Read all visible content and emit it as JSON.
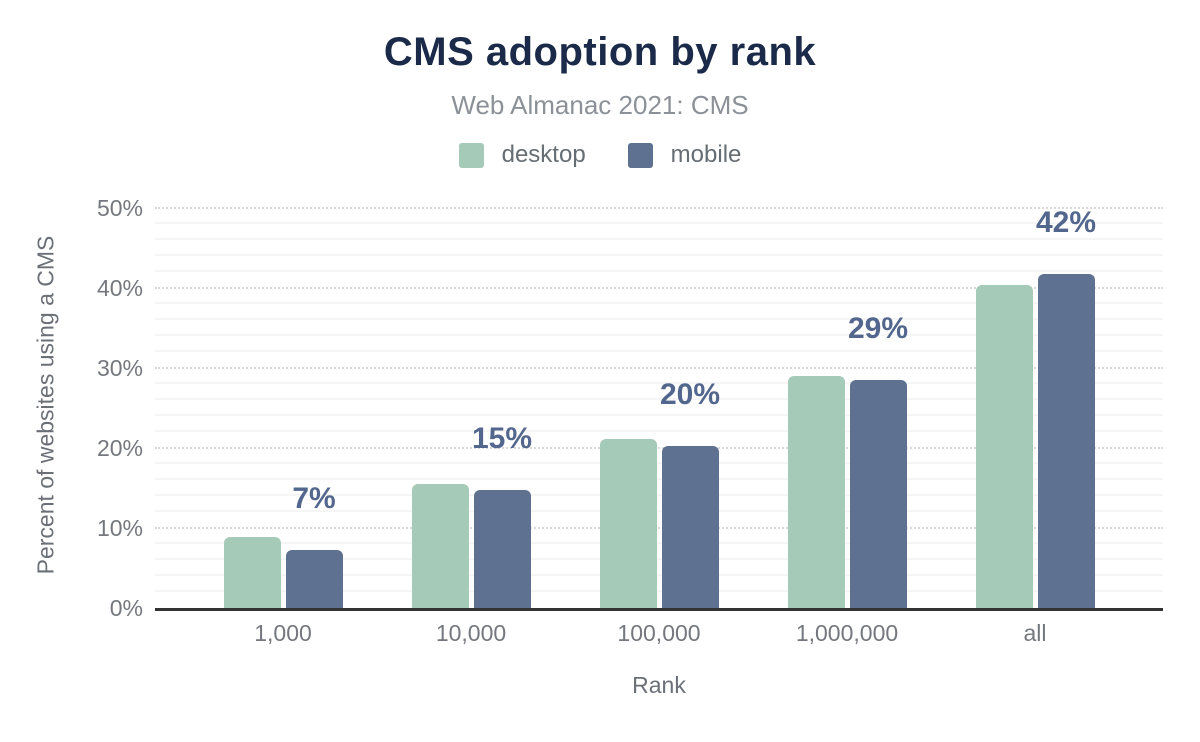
{
  "chart_data": {
    "type": "bar",
    "title": "CMS adoption by rank",
    "subtitle": "Web Almanac 2021: CMS",
    "xlabel": "Rank",
    "ylabel": "Percent of websites using a CMS",
    "categories": [
      "1,000",
      "10,000",
      "100,000",
      "1,000,000",
      "all"
    ],
    "series": [
      {
        "name": "desktop",
        "color": "#a5cab8",
        "values": [
          8.9,
          15.5,
          21.1,
          29.0,
          40.4
        ]
      },
      {
        "name": "mobile",
        "color": "#5f7190",
        "values": [
          7.2,
          14.8,
          20.3,
          28.5,
          41.7
        ]
      }
    ],
    "data_labels": [
      "7%",
      "15%",
      "20%",
      "29%",
      "42%"
    ],
    "data_label_series": "mobile",
    "ylim": [
      0,
      50
    ],
    "yticks": [
      0,
      10,
      20,
      30,
      40,
      50
    ],
    "ytick_labels": [
      "0%",
      "10%",
      "20%",
      "30%",
      "40%",
      "50%"
    ],
    "minor_grid_step": 2,
    "grid": true,
    "legend_position": "top"
  },
  "colors": {
    "title": "#1c2a4a",
    "subtitle": "#8b9197",
    "data_label": "#53678e",
    "axis_line": "#333333",
    "tick_text": "#74787e"
  }
}
